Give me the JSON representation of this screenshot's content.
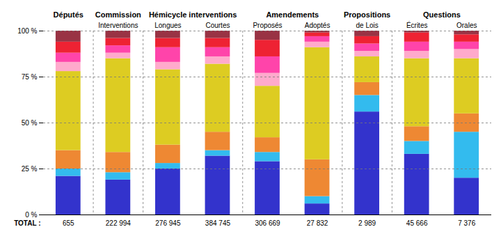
{
  "chart_data": {
    "type": "bar",
    "stacked": true,
    "categories": [
      null,
      "Interventions",
      "Longues",
      "Courtes",
      "Proposés",
      "Adoptés",
      "de Lois",
      "Écrites",
      "Orales"
    ],
    "groups": [
      "Députés",
      "Commission",
      "Hémicycle interventions",
      "Hémicycle interventions",
      "Amendements",
      "Amendements",
      "Propositions",
      "Questions",
      "Questions"
    ],
    "series": [
      {
        "color": "#3333cc",
        "values": [
          21,
          19,
          25,
          32,
          29,
          6,
          56,
          33,
          20
        ]
      },
      {
        "color": "#33bbee",
        "values": [
          4,
          4,
          3,
          3,
          5,
          4,
          9,
          7,
          25
        ]
      },
      {
        "color": "#ee8833",
        "values": [
          10,
          11,
          10,
          10,
          8,
          20,
          7,
          8,
          10
        ]
      },
      {
        "color": "#ddcc22",
        "values": [
          43,
          51,
          41,
          37,
          28,
          61,
          14,
          37,
          30
        ]
      },
      {
        "color": "#ffaacc",
        "values": [
          5,
          3,
          4,
          4,
          7,
          3,
          3,
          4,
          5
        ]
      },
      {
        "color": "#ff44aa",
        "values": [
          5,
          4,
          8,
          5,
          9,
          3,
          4,
          5,
          4
        ]
      },
      {
        "color": "#ee2233",
        "values": [
          6,
          4,
          5,
          5,
          9,
          2,
          4,
          5,
          4
        ]
      },
      {
        "color": "#993344",
        "values": [
          6,
          4,
          4,
          4,
          5,
          1,
          3,
          1,
          2
        ]
      }
    ],
    "ylim": [
      0,
      100
    ],
    "yticks": [
      {
        "value": 0,
        "label": "0 %"
      },
      {
        "value": 25,
        "label": "25 %"
      },
      {
        "value": 50,
        "label": "50 %"
      },
      {
        "value": 75,
        "label": "75 %"
      },
      {
        "value": 100,
        "label": "100 %"
      }
    ],
    "grid": true,
    "totals_label": "TOTAL :",
    "totals": [
      "655",
      "222 994",
      "276 945",
      "384 745",
      "306 669",
      "27 832",
      "2 989",
      "45 666",
      "7 376"
    ]
  }
}
